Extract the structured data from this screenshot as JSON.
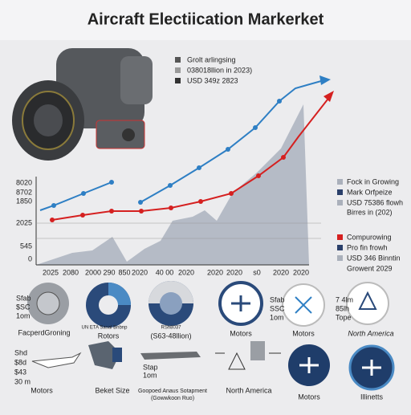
{
  "title": "Aircraft Electiication Markerket",
  "top_legend": [
    "Grolt arlingsing",
    "038018llion in 2023)",
    "USD 349z 2823"
  ],
  "y_labels": [
    "8020",
    "8702",
    "1850",
    "2025",
    "545",
    "0"
  ],
  "x_labels": [
    "2025",
    "2080",
    "2000",
    "290",
    "850",
    "2020",
    "40 00",
    "2020",
    "2020",
    "2020",
    "s0",
    "2020",
    "2020"
  ],
  "mid_legend": [
    "Fock in Growing",
    "Mark Orfpeize",
    "USD 75386 flowh",
    "Birres in (202)"
  ],
  "low_legend": [
    "Compurowing",
    "Pro fin frowh",
    "USD 346 Binntin",
    "Growent 2029"
  ],
  "circles": {
    "left_labels": [
      "Sfab",
      "$SC",
      "1om"
    ],
    "captions": [
      "FacperdGroning",
      "Rotors",
      "(S63-48llion)",
      "Motors",
      "Motors",
      "North America"
    ],
    "sub_labels": [
      "UN ETA Sasal Bnbnp",
      "RSh8037"
    ],
    "mid_labels": [
      "Sfab",
      "SSC",
      "1om"
    ],
    "right_labels": [
      "7 4lm",
      "85lh",
      "Tope"
    ],
    "badge": "North America"
  },
  "bottom": {
    "left_labels": [
      "Shd",
      "$8d",
      "$43",
      "30 m"
    ],
    "captions": [
      "Motors",
      "Beket Size",
      "Goopoed Anaus Sotapment",
      "(Gowwkoon Ruo)",
      "North America",
      "Motors",
      "Illinetts"
    ],
    "plane_labels": [
      "Stap",
      "1om"
    ]
  }
}
